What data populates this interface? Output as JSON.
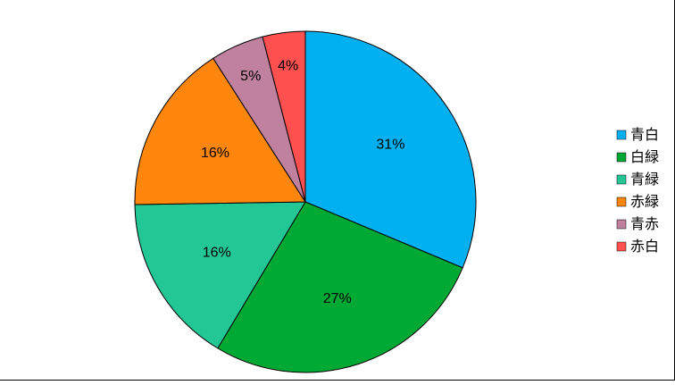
{
  "chart_data": {
    "type": "pie",
    "categories": [
      "青白",
      "白緑",
      "青緑",
      "赤緑",
      "青赤",
      "赤白"
    ],
    "values": [
      31,
      27,
      16,
      16,
      5,
      4
    ],
    "value_labels": [
      "31%",
      "27%",
      "16%",
      "16%",
      "5%",
      "4%"
    ],
    "colors": [
      "#00b0f0",
      "#00a933",
      "#23c795",
      "#ff860d",
      "#bf819e",
      "#ff5050"
    ],
    "legend": "right"
  }
}
